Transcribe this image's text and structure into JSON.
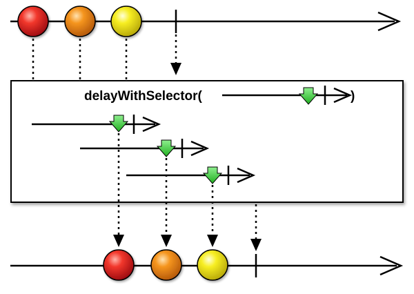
{
  "operator": {
    "name": "delayWithSelector(",
    "close_paren": ")"
  },
  "colors": {
    "background": "#ffffff",
    "line": "#000000",
    "operator_box_fill": "#ffffff",
    "marble_red": "#e8141c",
    "marble_orange": "#f08a14",
    "marble_yellow": "#f5ec16",
    "delay_marker": "#3cd13c"
  },
  "marbles": [
    {
      "name": "marble-red",
      "color": "red"
    },
    {
      "name": "marble-orange",
      "color": "orange"
    },
    {
      "name": "marble-yellow",
      "color": "yellow"
    }
  ],
  "icons": [
    "down-arrow-icon",
    "completion-tick-icon",
    "arrow-head-icon"
  ]
}
